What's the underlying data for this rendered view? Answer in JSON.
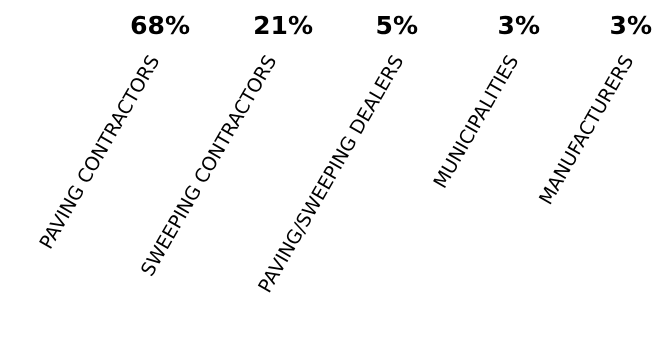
{
  "chart_data": {
    "type": "table",
    "title": "",
    "categories": [
      "PAVING CONTRACTORS",
      "SWEEPING CONTRACTORS",
      "PAVING/SWEEPING DEALERS",
      "MUNICIPALITIES",
      "MANUFACTURERS"
    ],
    "values": [
      68,
      21,
      5,
      3,
      3
    ],
    "value_labels": [
      "68%",
      "21%",
      "5%",
      "3%",
      "3%"
    ],
    "label_rotation_deg": -60,
    "colors": {
      "text": "#000000",
      "background": "#ffffff"
    }
  }
}
